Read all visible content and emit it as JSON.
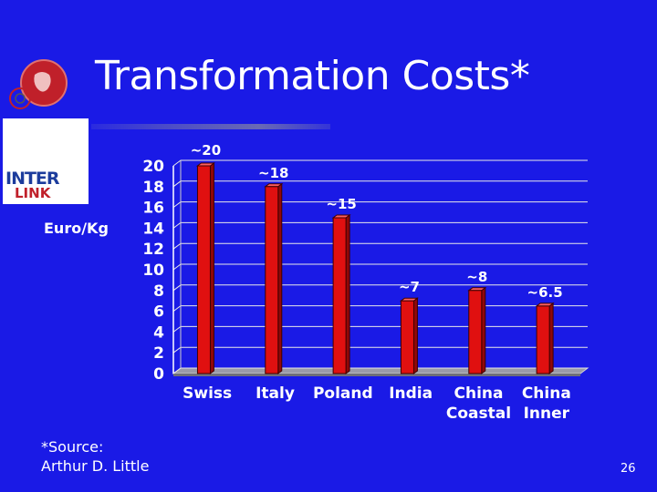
{
  "slide": {
    "title": "Transformation Costs*",
    "source_line1": "*Source:",
    "source_line2": "Arthur D. Little",
    "page_number": "26"
  },
  "logo": {
    "line1": "INTER",
    "line2": "LINK"
  },
  "colors": {
    "background": "#1a1ae6",
    "bar": "#e01010",
    "bar_side": "#900808",
    "grid": "#e8e8e8"
  },
  "chart_data": {
    "type": "bar",
    "title": "",
    "ylabel": "Euro/Kg",
    "xlabel": "",
    "categories": [
      [
        "Swiss"
      ],
      [
        "Italy"
      ],
      [
        "Poland"
      ],
      [
        "India"
      ],
      [
        "China",
        "Coastal"
      ],
      [
        "China",
        "Inner"
      ]
    ],
    "values": [
      20,
      18,
      15,
      7,
      8,
      6.5
    ],
    "data_labels": [
      "~20",
      "~18",
      "~15",
      "~7",
      "~8",
      "~6.5"
    ],
    "ylim": [
      0,
      20
    ],
    "yticks": [
      0,
      2,
      4,
      6,
      8,
      10,
      12,
      14,
      16,
      18,
      20
    ],
    "grid": "horizontal",
    "legend": "none"
  }
}
